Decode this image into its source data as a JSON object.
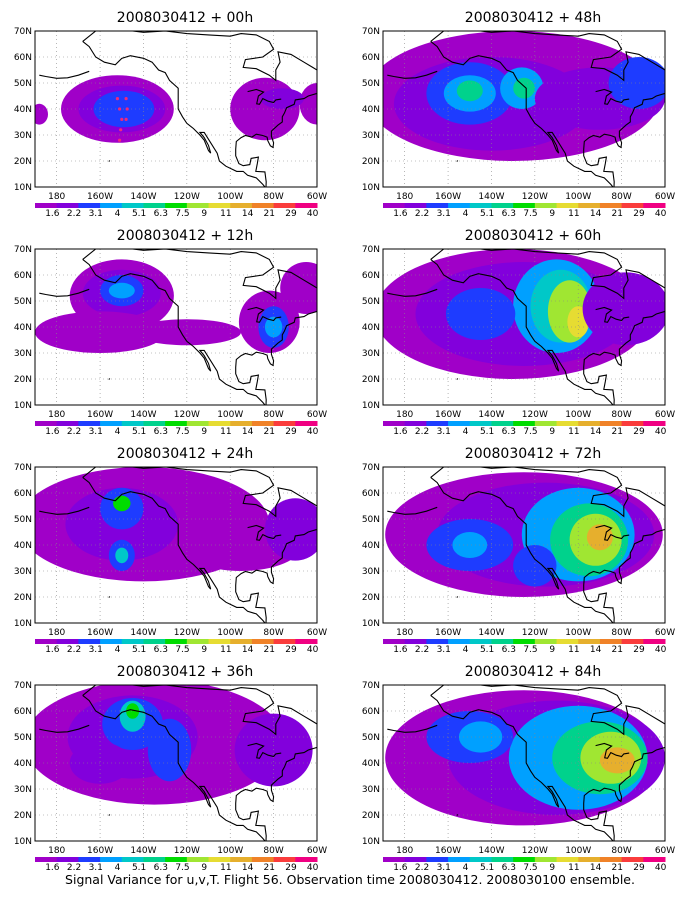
{
  "base_time": "2008030412",
  "panels": [
    {
      "title": "2008030412 + 00h"
    },
    {
      "title": "2008030412 + 48h"
    },
    {
      "title": "2008030412 + 12h"
    },
    {
      "title": "2008030412 + 60h"
    },
    {
      "title": "2008030412 + 24h"
    },
    {
      "title": "2008030412 + 72h"
    },
    {
      "title": "2008030412 + 36h"
    },
    {
      "title": "2008030412 + 84h"
    }
  ],
  "lat_labels": [
    "70N",
    "60N",
    "50N",
    "40N",
    "30N",
    "20N",
    "10N"
  ],
  "lon_labels": [
    "180",
    "160W",
    "140W",
    "120W",
    "100W",
    "80W",
    "60W"
  ],
  "colorbar": {
    "levels": [
      "1.6",
      "2.2",
      "3.1",
      "4",
      "5.1",
      "6.3",
      "7.5",
      "9",
      "11",
      "14",
      "21",
      "29",
      "40"
    ],
    "colors": [
      "#a000c8",
      "#8200dc",
      "#1e3cff",
      "#00a0ff",
      "#00c8c8",
      "#00d28c",
      "#00dc00",
      "#a0e632",
      "#e6dc32",
      "#e6af2d",
      "#f08228",
      "#fa3c3c",
      "#f00082"
    ]
  },
  "footer": "Signal Variance for u,v,T. Flight 56. Observation time 2008030412. 2008030100 ensemble."
}
